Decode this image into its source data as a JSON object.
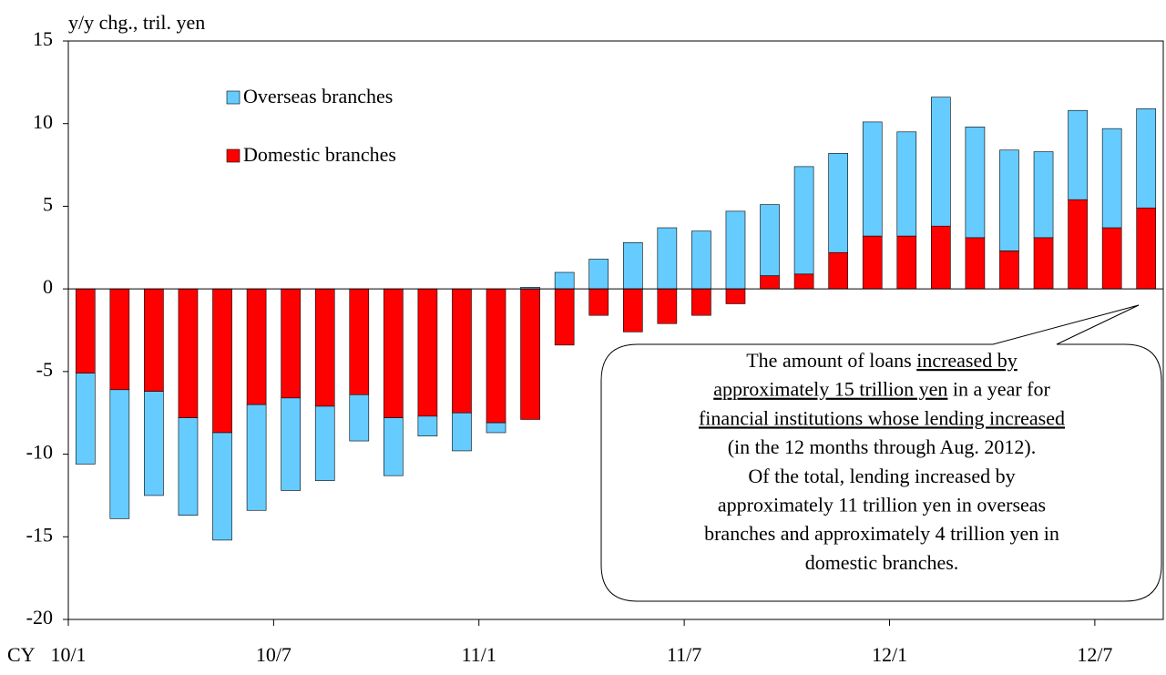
{
  "chart_data": {
    "type": "bar",
    "stacked": true,
    "y_label": "y/y chg., tril. yen",
    "x_prefix": "CY",
    "categories": [
      "10/1",
      null,
      null,
      null,
      null,
      null,
      "10/7",
      null,
      null,
      null,
      null,
      null,
      "11/1",
      null,
      null,
      null,
      null,
      null,
      "11/7",
      null,
      null,
      null,
      null,
      null,
      "12/1",
      null,
      null,
      null,
      null,
      null,
      "12/7",
      null
    ],
    "series": [
      {
        "name": "Domestic branches",
        "color": "#ff0000",
        "values": [
          -5.1,
          -6.1,
          -6.2,
          -7.8,
          -8.7,
          -7.0,
          -6.6,
          -7.1,
          -6.4,
          -7.8,
          -7.7,
          -7.5,
          -8.1,
          -7.9,
          -3.4,
          -1.6,
          -2.6,
          -2.1,
          -1.6,
          -0.9,
          0.8,
          0.9,
          2.2,
          3.2,
          3.2,
          3.8,
          3.1,
          2.3,
          3.1,
          5.4,
          3.7,
          4.9
        ]
      },
      {
        "name": "Overseas branches",
        "color": "#66ccff",
        "values": [
          -5.5,
          -7.8,
          -6.3,
          -5.9,
          -6.5,
          -6.4,
          -5.6,
          -4.5,
          -2.8,
          -3.5,
          -1.2,
          -2.3,
          -0.6,
          0.1,
          1.0,
          1.8,
          2.8,
          3.7,
          3.5,
          4.7,
          4.3,
          6.5,
          6.0,
          6.9,
          6.3,
          7.8,
          6.7,
          6.1,
          5.2,
          5.4,
          6.0,
          6.0
        ]
      }
    ],
    "ylim": [
      -20,
      15
    ],
    "yticks": [
      -20,
      -15,
      -10,
      -5,
      0,
      5,
      10,
      15
    ],
    "annotation": [
      [
        {
          "text": "The amount of loans "
        },
        {
          "text": "increased by",
          "underline": true
        }
      ],
      [
        {
          "text": "approximately 15 trillion yen",
          "underline": true
        },
        {
          "text": " in a year for"
        }
      ],
      [
        {
          "text": "financial institutions whose lending increased",
          "underline": true
        }
      ],
      [
        {
          "text": "(in the 12 months through Aug. 2012)."
        }
      ],
      [
        {
          "text": "Of the total, lending increased by"
        }
      ],
      [
        {
          "text": "approximately 11 trillion yen in overseas"
        }
      ],
      [
        {
          "text": "branches and approximately 4 trillion yen in"
        }
      ],
      [
        {
          "text": "domestic branches."
        }
      ]
    ]
  }
}
